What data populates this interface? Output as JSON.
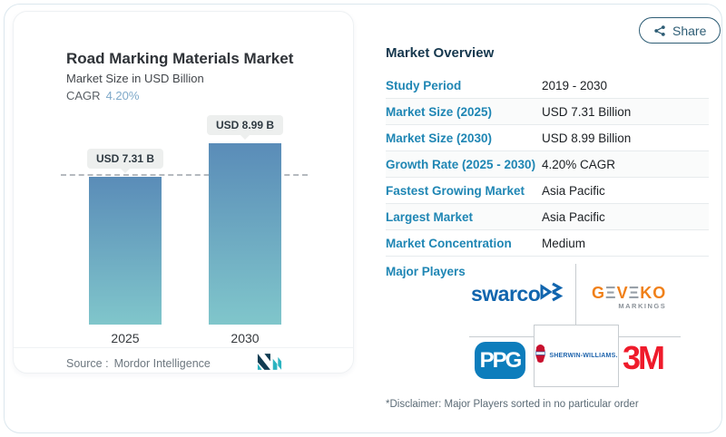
{
  "share": {
    "label": "Share"
  },
  "chart": {
    "title": "Road Marking Materials Market",
    "subtitle": "Market Size in USD Billion",
    "cagr_label": "CAGR",
    "cagr_value": "4.20%",
    "source_label": "Source :",
    "source_value": "Mordor Intelligence",
    "bars": [
      {
        "year": "2025",
        "label": "USD 7.31 B",
        "value": 7.31
      },
      {
        "year": "2030",
        "label": "USD 8.99 B",
        "value": 8.99
      }
    ]
  },
  "chart_data": {
    "type": "bar",
    "categories": [
      "2025",
      "2030"
    ],
    "values": [
      7.31,
      8.99
    ],
    "title": "Road Marking Materials Market",
    "subtitle": "Market Size in USD Billion",
    "xlabel": "",
    "ylabel": "Market Size (USD Billion)",
    "ylim": [
      0,
      10
    ],
    "data_labels": [
      "USD 7.31 B",
      "USD 8.99 B"
    ],
    "grid": false,
    "legend": false,
    "annotations": [
      "dashed reference line at 2025 level (7.31)"
    ]
  },
  "overview": {
    "title": "Market Overview",
    "rows": [
      {
        "label": "Study Period",
        "value": "2019 - 2030"
      },
      {
        "label": "Market Size (2025)",
        "value": "USD 7.31 Billion"
      },
      {
        "label": "Market Size (2030)",
        "value": "USD 8.99 Billion"
      },
      {
        "label": "Growth Rate (2025 - 2030)",
        "value": "4.20% CAGR"
      },
      {
        "label": "Fastest Growing Market",
        "value": "Asia Pacific"
      },
      {
        "label": "Largest Market",
        "value": "Asia Pacific"
      },
      {
        "label": "Market Concentration",
        "value": "Medium"
      }
    ],
    "major_players_label": "Major Players",
    "disclaimer": "*Disclaimer: Major Players sorted in no particular order"
  },
  "logos": {
    "swarco": {
      "text": "swarco"
    },
    "geveko": {
      "g": "G",
      "e1": "Ξ",
      "v": "V",
      "e2": "Ξ",
      "ko": "KO",
      "sub": "MARKINGS"
    },
    "ppg": {
      "text": "PPG"
    },
    "sherwin": {
      "text": "SHERWIN-WILLIAMS."
    },
    "threem": {
      "text": "3M"
    }
  },
  "colors": {
    "accent_label_blue": "#1F86B4",
    "heading_navy": "#16384E",
    "bar_gradient_top": "#5A8CB8",
    "bar_gradient_bottom": "#80C6CB",
    "cagr_value_blue": "#7FA9C9",
    "share_teal": "#2E5D75",
    "swarco_blue": "#1165AE",
    "geveko_orange": "#F08019",
    "ppg_blue": "#0D7DBC",
    "sherwin_blue": "#1D63AC",
    "threem_red": "#EF1B2B"
  }
}
